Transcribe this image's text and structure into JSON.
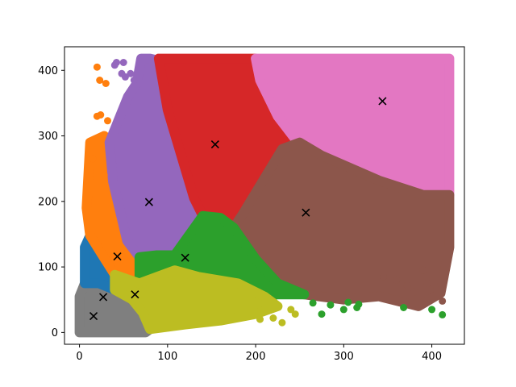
{
  "chart_data": {
    "type": "scatter",
    "title": "",
    "xlabel": "",
    "ylabel": "",
    "xlim": [
      -17,
      437
    ],
    "ylim": [
      -18,
      436
    ],
    "xticks": [
      0,
      100,
      200,
      300,
      400
    ],
    "yticks": [
      0,
      100,
      200,
      300,
      400
    ],
    "grid": false,
    "legend": "none",
    "centroid_marker": "x",
    "series": [
      {
        "color": "#7f7f7f",
        "centroid": [
          16,
          25
        ],
        "region": [
          [
            0,
            0
          ],
          [
            75,
            0
          ],
          [
            80,
            5
          ],
          [
            72,
            30
          ],
          [
            60,
            50
          ],
          [
            40,
            65
          ],
          [
            22,
            75
          ],
          [
            6,
            75
          ],
          [
            0,
            55
          ]
        ],
        "outliers": []
      },
      {
        "color": "#1f77b4",
        "centroid": [
          27,
          54
        ],
        "region": [
          [
            6,
            75
          ],
          [
            22,
            75
          ],
          [
            40,
            65
          ],
          [
            40,
            88
          ],
          [
            25,
            120
          ],
          [
            12,
            148
          ],
          [
            6,
            130
          ]
        ],
        "outliers": []
      },
      {
        "color": "#ff7f0e",
        "centroid": [
          43,
          116
        ],
        "region": [
          [
            12,
            148
          ],
          [
            25,
            120
          ],
          [
            40,
            88
          ],
          [
            68,
            75
          ],
          [
            68,
            115
          ],
          [
            54,
            140
          ],
          [
            38,
            230
          ],
          [
            34,
            285
          ],
          [
            28,
            300
          ],
          [
            12,
            290
          ],
          [
            8,
            190
          ]
        ],
        "outliers": [
          [
            20,
            405
          ],
          [
            23,
            385
          ],
          [
            30,
            380
          ],
          [
            20,
            330
          ],
          [
            24,
            332
          ],
          [
            32,
            323
          ],
          [
            28,
            240
          ],
          [
            15,
            265
          ]
        ]
      },
      {
        "color": "#9467bd",
        "centroid": [
          79,
          199
        ],
        "region": [
          [
            54,
            140
          ],
          [
            68,
            115
          ],
          [
            88,
            118
          ],
          [
            108,
            118
          ],
          [
            140,
            178
          ],
          [
            130,
            205
          ],
          [
            100,
            340
          ],
          [
            90,
            415
          ],
          [
            80,
            418
          ],
          [
            70,
            418
          ],
          [
            65,
            380
          ],
          [
            55,
            360
          ],
          [
            34,
            290
          ],
          [
            38,
            230
          ]
        ],
        "outliers": [
          [
            40,
            408
          ],
          [
            42,
            412
          ],
          [
            50,
            412
          ],
          [
            52,
            390
          ],
          [
            58,
            395
          ],
          [
            62,
            385
          ],
          [
            48,
            395
          ]
        ]
      },
      {
        "color": "#d62728",
        "centroid": [
          154,
          287
        ],
        "region": [
          [
            90,
            418
          ],
          [
            200,
            418
          ],
          [
            205,
            385
          ],
          [
            225,
            330
          ],
          [
            245,
            295
          ],
          [
            250,
            290
          ],
          [
            230,
            280
          ],
          [
            185,
            180
          ],
          [
            160,
            155
          ],
          [
            140,
            178
          ],
          [
            130,
            205
          ],
          [
            100,
            340
          ]
        ],
        "outliers": []
      },
      {
        "color": "#e377c2",
        "centroid": [
          344,
          353
        ],
        "region": [
          [
            200,
            418
          ],
          [
            420,
            418
          ],
          [
            420,
            210
          ],
          [
            390,
            210
          ],
          [
            340,
            232
          ],
          [
            275,
            270
          ],
          [
            250,
            290
          ],
          [
            245,
            295
          ],
          [
            225,
            330
          ],
          [
            205,
            385
          ]
        ],
        "outliers": []
      },
      {
        "color": "#8c564b",
        "centroid": [
          257,
          183
        ],
        "region": [
          [
            250,
            290
          ],
          [
            275,
            270
          ],
          [
            340,
            232
          ],
          [
            390,
            210
          ],
          [
            420,
            210
          ],
          [
            420,
            130
          ],
          [
            410,
            60
          ],
          [
            385,
            40
          ],
          [
            340,
            55
          ],
          [
            300,
            50
          ],
          [
            255,
            58
          ],
          [
            225,
            75
          ],
          [
            200,
            112
          ],
          [
            175,
            160
          ],
          [
            185,
            180
          ],
          [
            230,
            280
          ]
        ],
        "outliers": [
          [
            345,
            85
          ],
          [
            360,
            80
          ],
          [
            372,
            72
          ],
          [
            380,
            62
          ],
          [
            395,
            75
          ],
          [
            405,
            65
          ],
          [
            390,
            95
          ],
          [
            412,
            48
          ]
        ]
      },
      {
        "color": "#2ca02c",
        "centroid": [
          120,
          114
        ],
        "region": [
          [
            68,
            75
          ],
          [
            108,
            95
          ],
          [
            135,
            85
          ],
          [
            180,
            75
          ],
          [
            210,
            55
          ],
          [
            225,
            58
          ],
          [
            255,
            58
          ],
          [
            225,
            75
          ],
          [
            200,
            112
          ],
          [
            175,
            160
          ],
          [
            160,
            175
          ],
          [
            140,
            178
          ],
          [
            108,
            118
          ],
          [
            88,
            118
          ],
          [
            68,
            115
          ]
        ],
        "outliers": [
          [
            265,
            45
          ],
          [
            275,
            28
          ],
          [
            285,
            42
          ],
          [
            300,
            35
          ],
          [
            305,
            46
          ],
          [
            315,
            38
          ],
          [
            317,
            43
          ],
          [
            368,
            38
          ],
          [
            400,
            35
          ],
          [
            412,
            27
          ]
        ]
      },
      {
        "color": "#bcbd22",
        "centroid": [
          63,
          58
        ],
        "region": [
          [
            40,
            65
          ],
          [
            60,
            50
          ],
          [
            72,
            30
          ],
          [
            80,
            5
          ],
          [
            120,
            12
          ],
          [
            160,
            18
          ],
          [
            200,
            28
          ],
          [
            225,
            40
          ],
          [
            210,
            55
          ],
          [
            180,
            75
          ],
          [
            135,
            85
          ],
          [
            108,
            95
          ],
          [
            68,
            75
          ],
          [
            40,
            88
          ]
        ],
        "outliers": [
          [
            220,
            22
          ],
          [
            230,
            15
          ],
          [
            245,
            28
          ],
          [
            205,
            20
          ],
          [
            240,
            35
          ]
        ]
      }
    ]
  }
}
